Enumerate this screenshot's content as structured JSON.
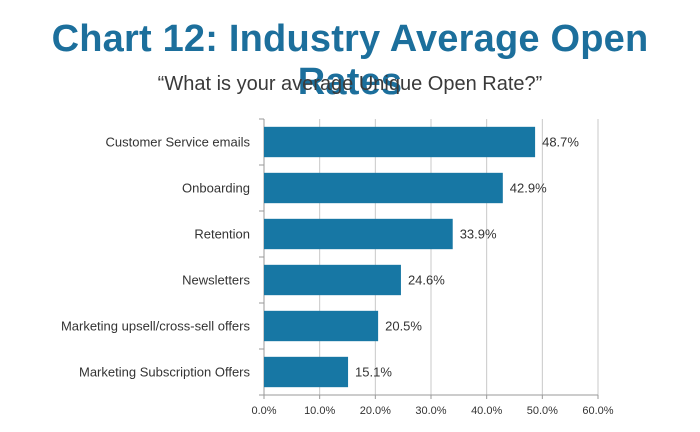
{
  "title": "Chart 12: Industry Average Open Rates",
  "subtitle": "“What is your average Unique Open Rate?”",
  "colors": {
    "title": "#1c6f9c",
    "bar": "#1777a4",
    "grid": "#c8c8c8",
    "axis": "#999999"
  },
  "chart_data": {
    "type": "bar",
    "orientation": "horizontal",
    "title": "Chart 12: Industry Average Open Rates",
    "subtitle": "“What is your average Unique Open Rate?”",
    "categories": [
      "Customer Service emails",
      "Onboarding",
      "Retention",
      "Newsletters",
      "Marketing upsell/cross-sell offers",
      "Marketing Subscription Offers"
    ],
    "values": [
      48.7,
      42.9,
      33.9,
      24.6,
      20.5,
      15.1
    ],
    "value_labels": [
      "48.7%",
      "42.9%",
      "33.9%",
      "24.6%",
      "20.5%",
      "15.1%"
    ],
    "xlim": [
      0,
      60
    ],
    "x_ticks": [
      0,
      10,
      20,
      30,
      40,
      50,
      60
    ],
    "x_tick_labels": [
      "0.0%",
      "10.0%",
      "20.0%",
      "30.0%",
      "40.0%",
      "50.0%",
      "60.0%"
    ],
    "grid": true,
    "legend": "none"
  }
}
